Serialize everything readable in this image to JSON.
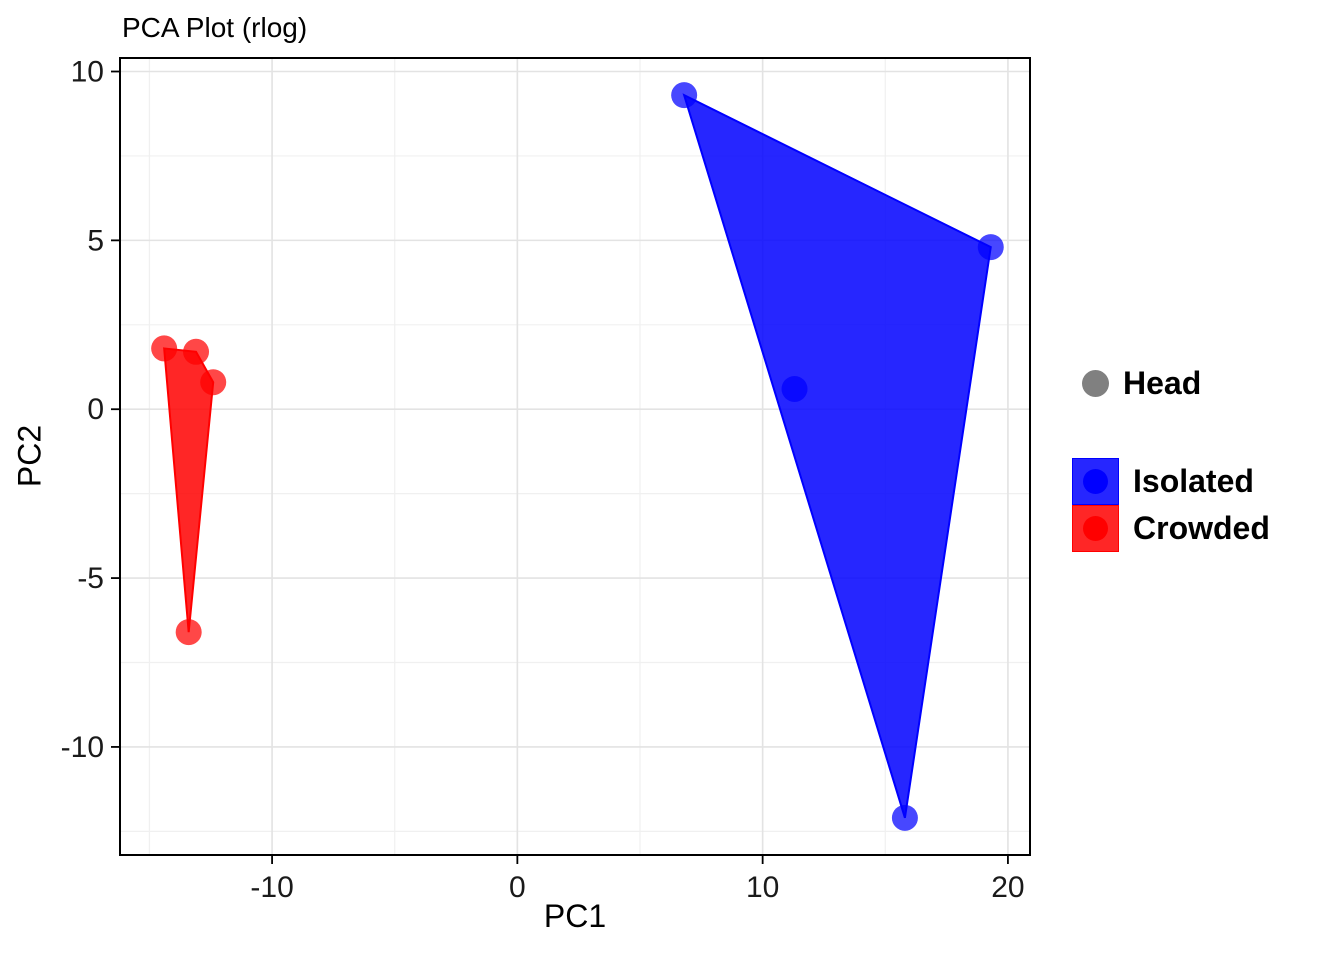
{
  "chart_data": {
    "type": "scatter",
    "title": "PCA Plot (rlog)",
    "xlabel": "PC1",
    "ylabel": "PC2",
    "xlim": [
      -16.2,
      20.9
    ],
    "ylim": [
      -13.2,
      10.4
    ],
    "x_ticks": [
      -10,
      0,
      10,
      20
    ],
    "x_minor_ticks": [
      -15,
      -5,
      5,
      15
    ],
    "y_ticks": [
      -10,
      -5,
      0,
      5,
      10
    ],
    "y_minor_ticks": [
      -12.5,
      -7.5,
      -2.5,
      2.5,
      7.5
    ],
    "grid": true,
    "legend_position": "right",
    "colors": {
      "isolated": "#0000ff",
      "crowded": "#ff0000",
      "head_shape": "#808080",
      "grid_major": "#e3e3e3",
      "grid_minor": "#f0f0f0",
      "panel_border": "#000000",
      "axis_text": "#1a1a1a",
      "panel_background": "#ffffff"
    },
    "series": [
      {
        "name": "Isolated",
        "color": "#0000ff",
        "points": [
          [
            6.8,
            9.3
          ],
          [
            19.3,
            4.8
          ],
          [
            11.3,
            0.6
          ],
          [
            15.8,
            -12.1
          ]
        ],
        "hull": [
          [
            6.8,
            9.3
          ],
          [
            19.3,
            4.8
          ],
          [
            15.8,
            -12.1
          ]
        ]
      },
      {
        "name": "Crowded",
        "color": "#ff0000",
        "points": [
          [
            -14.4,
            1.8
          ],
          [
            -13.1,
            1.7
          ],
          [
            -12.4,
            0.8
          ],
          [
            -13.4,
            -6.6
          ]
        ],
        "hull": [
          [
            -14.4,
            1.8
          ],
          [
            -13.1,
            1.7
          ],
          [
            -12.4,
            0.8
          ],
          [
            -13.4,
            -6.6
          ]
        ]
      }
    ],
    "legend": {
      "shape_item": {
        "label": "Head",
        "color": "#808080"
      },
      "fill_items": [
        {
          "label": "Isolated",
          "color": "#0000ff"
        },
        {
          "label": "Crowded",
          "color": "#ff0000"
        }
      ]
    }
  }
}
